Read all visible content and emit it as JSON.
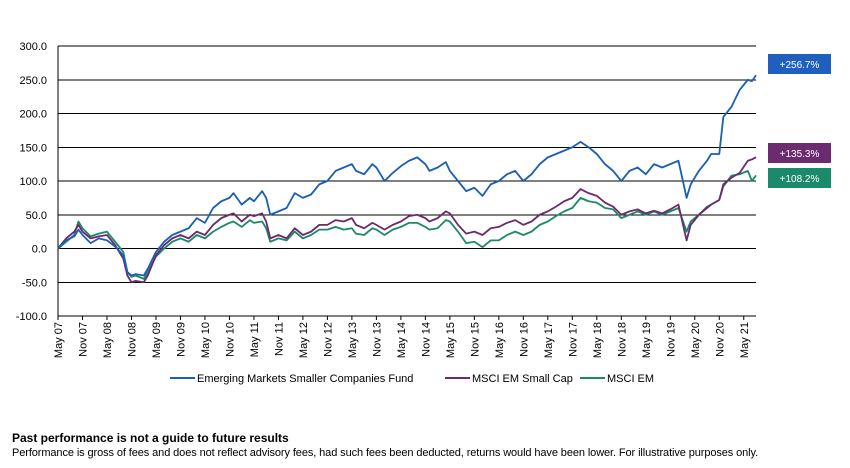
{
  "colors": {
    "fund": "#1b5fb5",
    "small_cap": "#6b2b6e",
    "em": "#1b8a6a",
    "end_label_fund": "#1f5fbd",
    "end_label_small_cap": "#6b2b6e",
    "end_label_em": "#1b8a6a"
  },
  "chart_data": {
    "type": "line",
    "ylim": [
      -100,
      300
    ],
    "ytick_labels": [
      "300.0",
      "250.0",
      "200.0",
      "150.0",
      "100.0",
      "50.0",
      "0.0",
      "-50.0",
      "-100.0"
    ],
    "yticks": [
      300,
      250,
      200,
      150,
      100,
      50,
      0,
      -50,
      -100
    ],
    "x_start": "May 07",
    "x_end": "Aug 21",
    "xtick_labels": [
      "May 07",
      "Nov 07",
      "May 08",
      "Nov 08",
      "May 09",
      "Nov 09",
      "May 10",
      "Nov 10",
      "May 11",
      "Nov 11",
      "May 12",
      "Nov 12",
      "May 13",
      "Nov 13",
      "May 14",
      "Nov 14",
      "May 15",
      "Nov 15",
      "May 16",
      "Nov 16",
      "May 17",
      "Nov 17",
      "May 18",
      "Nov 18",
      "May 19",
      "Nov 19",
      "May 20",
      "Nov 20",
      "May 21"
    ],
    "grid": true,
    "legend_position": "bottom",
    "series": [
      {
        "name": "Emerging Markets Smaller Companies Fund",
        "end_label": "+256.7%",
        "points": [
          [
            "May 07",
            0
          ],
          [
            "Jul 07",
            12
          ],
          [
            "Sep 07",
            18
          ],
          [
            "Oct 07",
            28
          ],
          [
            "Nov 07",
            20
          ],
          [
            "Jan 08",
            8
          ],
          [
            "Mar 08",
            15
          ],
          [
            "May 08",
            12
          ],
          [
            "Jul 08",
            3
          ],
          [
            "Sep 08",
            -10
          ],
          [
            "Oct 08",
            -35
          ],
          [
            "Nov 08",
            -40
          ],
          [
            "Dec 08",
            -38
          ],
          [
            "Feb 09",
            -40
          ],
          [
            "Mar 09",
            -30
          ],
          [
            "May 09",
            -5
          ],
          [
            "Jul 09",
            10
          ],
          [
            "Sep 09",
            20
          ],
          [
            "Nov 09",
            25
          ],
          [
            "Jan 10",
            30
          ],
          [
            "Mar 10",
            45
          ],
          [
            "May 10",
            38
          ],
          [
            "Jul 10",
            60
          ],
          [
            "Sep 10",
            70
          ],
          [
            "Nov 10",
            75
          ],
          [
            "Dec 10",
            82
          ],
          [
            "Feb 11",
            65
          ],
          [
            "Apr 11",
            75
          ],
          [
            "May 11",
            70
          ],
          [
            "Jul 11",
            85
          ],
          [
            "Aug 11",
            75
          ],
          [
            "Sep 11",
            50
          ],
          [
            "Nov 11",
            55
          ],
          [
            "Jan 12",
            60
          ],
          [
            "Mar 12",
            82
          ],
          [
            "May 12",
            75
          ],
          [
            "Jul 12",
            80
          ],
          [
            "Sep 12",
            95
          ],
          [
            "Nov 12",
            100
          ],
          [
            "Jan 13",
            115
          ],
          [
            "Mar 13",
            120
          ],
          [
            "May 13",
            125
          ],
          [
            "Jun 13",
            115
          ],
          [
            "Aug 13",
            110
          ],
          [
            "Oct 13",
            125
          ],
          [
            "Nov 13",
            120
          ],
          [
            "Jan 14",
            100
          ],
          [
            "Mar 14",
            112
          ],
          [
            "May 14",
            122
          ],
          [
            "Jul 14",
            130
          ],
          [
            "Sep 14",
            135
          ],
          [
            "Nov 14",
            125
          ],
          [
            "Dec 14",
            115
          ],
          [
            "Feb 15",
            120
          ],
          [
            "Apr 15",
            128
          ],
          [
            "May 15",
            115
          ],
          [
            "Jul 15",
            100
          ],
          [
            "Sep 15",
            85
          ],
          [
            "Nov 15",
            90
          ],
          [
            "Jan 16",
            78
          ],
          [
            "Mar 16",
            95
          ],
          [
            "May 16",
            100
          ],
          [
            "Jul 16",
            110
          ],
          [
            "Sep 16",
            115
          ],
          [
            "Nov 16",
            100
          ],
          [
            "Jan 17",
            110
          ],
          [
            "Mar 17",
            125
          ],
          [
            "May 17",
            135
          ],
          [
            "Jul 17",
            140
          ],
          [
            "Sep 17",
            145
          ],
          [
            "Nov 17",
            150
          ],
          [
            "Jan 18",
            158
          ],
          [
            "Mar 18",
            150
          ],
          [
            "May 18",
            140
          ],
          [
            "Jul 18",
            125
          ],
          [
            "Sep 18",
            115
          ],
          [
            "Nov 18",
            100
          ],
          [
            "Jan 19",
            115
          ],
          [
            "Mar 19",
            120
          ],
          [
            "May 19",
            110
          ],
          [
            "Jul 19",
            125
          ],
          [
            "Sep 19",
            120
          ],
          [
            "Nov 19",
            125
          ],
          [
            "Jan 20",
            130
          ],
          [
            "Mar 20",
            75
          ],
          [
            "Apr 20",
            95
          ],
          [
            "Jun 20",
            115
          ],
          [
            "Aug 20",
            130
          ],
          [
            "Sep 20",
            140
          ],
          [
            "Nov 20",
            140
          ],
          [
            "Dec 20",
            195
          ],
          [
            "Feb 21",
            210
          ],
          [
            "Apr 21",
            235
          ],
          [
            "Jun 21",
            250
          ],
          [
            "Jul 21",
            248
          ],
          [
            "Aug 21",
            256.7
          ]
        ]
      },
      {
        "name": "MSCI EM Small Cap",
        "end_label": "+135.3%",
        "points": [
          [
            "May 07",
            0
          ],
          [
            "Jul 07",
            15
          ],
          [
            "Sep 07",
            25
          ],
          [
            "Oct 07",
            35
          ],
          [
            "Nov 07",
            25
          ],
          [
            "Jan 08",
            15
          ],
          [
            "Mar 08",
            18
          ],
          [
            "May 08",
            20
          ],
          [
            "Jul 08",
            5
          ],
          [
            "Sep 08",
            -15
          ],
          [
            "Oct 08",
            -40
          ],
          [
            "Nov 08",
            -50
          ],
          [
            "Dec 08",
            -48
          ],
          [
            "Feb 09",
            -50
          ],
          [
            "Mar 09",
            -40
          ],
          [
            "May 09",
            -10
          ],
          [
            "Jul 09",
            5
          ],
          [
            "Sep 09",
            15
          ],
          [
            "Nov 09",
            20
          ],
          [
            "Jan 10",
            15
          ],
          [
            "Mar 10",
            25
          ],
          [
            "May 10",
            20
          ],
          [
            "Jul 10",
            35
          ],
          [
            "Sep 10",
            45
          ],
          [
            "Nov 10",
            50
          ],
          [
            "Dec 10",
            52
          ],
          [
            "Feb 11",
            40
          ],
          [
            "Apr 11",
            50
          ],
          [
            "May 11",
            48
          ],
          [
            "Jul 11",
            52
          ],
          [
            "Aug 11",
            40
          ],
          [
            "Sep 11",
            15
          ],
          [
            "Nov 11",
            20
          ],
          [
            "Jan 12",
            15
          ],
          [
            "Mar 12",
            30
          ],
          [
            "May 12",
            20
          ],
          [
            "Jul 12",
            25
          ],
          [
            "Sep 12",
            35
          ],
          [
            "Nov 12",
            35
          ],
          [
            "Jan 13",
            42
          ],
          [
            "Mar 13",
            40
          ],
          [
            "May 13",
            45
          ],
          [
            "Jun 13",
            35
          ],
          [
            "Aug 13",
            30
          ],
          [
            "Oct 13",
            38
          ],
          [
            "Nov 13",
            35
          ],
          [
            "Jan 14",
            28
          ],
          [
            "Mar 14",
            35
          ],
          [
            "May 14",
            40
          ],
          [
            "Jul 14",
            48
          ],
          [
            "Sep 14",
            50
          ],
          [
            "Nov 14",
            45
          ],
          [
            "Dec 14",
            40
          ],
          [
            "Feb 15",
            45
          ],
          [
            "Apr 15",
            55
          ],
          [
            "May 15",
            52
          ],
          [
            "Jul 15",
            35
          ],
          [
            "Sep 15",
            22
          ],
          [
            "Nov 15",
            25
          ],
          [
            "Jan 16",
            20
          ],
          [
            "Mar 16",
            30
          ],
          [
            "May 16",
            32
          ],
          [
            "Jul 16",
            38
          ],
          [
            "Sep 16",
            42
          ],
          [
            "Nov 16",
            35
          ],
          [
            "Jan 17",
            40
          ],
          [
            "Mar 17",
            50
          ],
          [
            "May 17",
            55
          ],
          [
            "Jul 17",
            62
          ],
          [
            "Sep 17",
            70
          ],
          [
            "Nov 17",
            75
          ],
          [
            "Jan 18",
            88
          ],
          [
            "Mar 18",
            82
          ],
          [
            "May 18",
            78
          ],
          [
            "Jul 18",
            68
          ],
          [
            "Sep 18",
            62
          ],
          [
            "Nov 18",
            50
          ],
          [
            "Jan 19",
            55
          ],
          [
            "Mar 19",
            58
          ],
          [
            "May 19",
            52
          ],
          [
            "Jul 19",
            56
          ],
          [
            "Sep 19",
            52
          ],
          [
            "Nov 19",
            58
          ],
          [
            "Jan 20",
            65
          ],
          [
            "Mar 20",
            12
          ],
          [
            "Apr 20",
            35
          ],
          [
            "Jun 20",
            50
          ],
          [
            "Aug 20",
            60
          ],
          [
            "Sep 20",
            65
          ],
          [
            "Nov 20",
            72
          ],
          [
            "Dec 20",
            95
          ],
          [
            "Feb 21",
            105
          ],
          [
            "Apr 21",
            112
          ],
          [
            "Jun 21",
            130
          ],
          [
            "Jul 21",
            132
          ],
          [
            "Aug 21",
            135.3
          ]
        ]
      },
      {
        "name": "MSCI EM",
        "end_label": "+108.2%",
        "points": [
          [
            "May 07",
            0
          ],
          [
            "Jul 07",
            10
          ],
          [
            "Sep 07",
            20
          ],
          [
            "Oct 07",
            40
          ],
          [
            "Nov 07",
            30
          ],
          [
            "Jan 08",
            18
          ],
          [
            "Mar 08",
            22
          ],
          [
            "May 08",
            25
          ],
          [
            "Jul 08",
            10
          ],
          [
            "Sep 08",
            -5
          ],
          [
            "Oct 08",
            -35
          ],
          [
            "Nov 08",
            -42
          ],
          [
            "Dec 08",
            -40
          ],
          [
            "Feb 09",
            -45
          ],
          [
            "Mar 09",
            -35
          ],
          [
            "May 09",
            -12
          ],
          [
            "Jul 09",
            0
          ],
          [
            "Sep 09",
            10
          ],
          [
            "Nov 09",
            15
          ],
          [
            "Jan 10",
            10
          ],
          [
            "Mar 10",
            20
          ],
          [
            "May 10",
            15
          ],
          [
            "Jul 10",
            25
          ],
          [
            "Sep 10",
            32
          ],
          [
            "Nov 10",
            38
          ],
          [
            "Dec 10",
            40
          ],
          [
            "Feb 11",
            32
          ],
          [
            "Apr 11",
            42
          ],
          [
            "May 11",
            38
          ],
          [
            "Jul 11",
            40
          ],
          [
            "Aug 11",
            30
          ],
          [
            "Sep 11",
            10
          ],
          [
            "Nov 11",
            15
          ],
          [
            "Jan 12",
            12
          ],
          [
            "Mar 12",
            25
          ],
          [
            "May 12",
            15
          ],
          [
            "Jul 12",
            20
          ],
          [
            "Sep 12",
            28
          ],
          [
            "Nov 12",
            28
          ],
          [
            "Jan 13",
            32
          ],
          [
            "Mar 13",
            28
          ],
          [
            "May 13",
            30
          ],
          [
            "Jun 13",
            22
          ],
          [
            "Aug 13",
            20
          ],
          [
            "Oct 13",
            30
          ],
          [
            "Nov 13",
            28
          ],
          [
            "Jan 14",
            20
          ],
          [
            "Mar 14",
            28
          ],
          [
            "May 14",
            32
          ],
          [
            "Jul 14",
            38
          ],
          [
            "Sep 14",
            38
          ],
          [
            "Nov 14",
            32
          ],
          [
            "Dec 14",
            28
          ],
          [
            "Feb 15",
            30
          ],
          [
            "Apr 15",
            42
          ],
          [
            "May 15",
            40
          ],
          [
            "Jul 15",
            25
          ],
          [
            "Sep 15",
            8
          ],
          [
            "Nov 15",
            10
          ],
          [
            "Jan 16",
            2
          ],
          [
            "Mar 16",
            12
          ],
          [
            "May 16",
            12
          ],
          [
            "Jul 16",
            20
          ],
          [
            "Sep 16",
            25
          ],
          [
            "Nov 16",
            20
          ],
          [
            "Jan 17",
            25
          ],
          [
            "Mar 17",
            35
          ],
          [
            "May 17",
            40
          ],
          [
            "Jul 17",
            48
          ],
          [
            "Sep 17",
            55
          ],
          [
            "Nov 17",
            60
          ],
          [
            "Jan 18",
            75
          ],
          [
            "Mar 18",
            70
          ],
          [
            "May 18",
            68
          ],
          [
            "Jul 18",
            60
          ],
          [
            "Sep 18",
            58
          ],
          [
            "Nov 18",
            45
          ],
          [
            "Jan 19",
            50
          ],
          [
            "Mar 19",
            55
          ],
          [
            "May 19",
            50
          ],
          [
            "Jul 19",
            55
          ],
          [
            "Sep 19",
            50
          ],
          [
            "Nov 19",
            55
          ],
          [
            "Jan 20",
            60
          ],
          [
            "Mar 20",
            25
          ],
          [
            "Apr 20",
            40
          ],
          [
            "Jun 20",
            50
          ],
          [
            "Aug 20",
            62
          ],
          [
            "Sep 20",
            65
          ],
          [
            "Nov 20",
            72
          ],
          [
            "Dec 20",
            92
          ],
          [
            "Feb 21",
            108
          ],
          [
            "Apr 21",
            110
          ],
          [
            "Jun 21",
            115
          ],
          [
            "Jul 21",
            100
          ],
          [
            "Aug 21",
            108.2
          ]
        ]
      }
    ]
  },
  "footnote": {
    "title": "Past performance is not a guide to future results",
    "body": "Performance is gross of fees and does not reflect advisory fees, had such fees been deducted, returns would have been lower. For illustrative purposes only."
  }
}
